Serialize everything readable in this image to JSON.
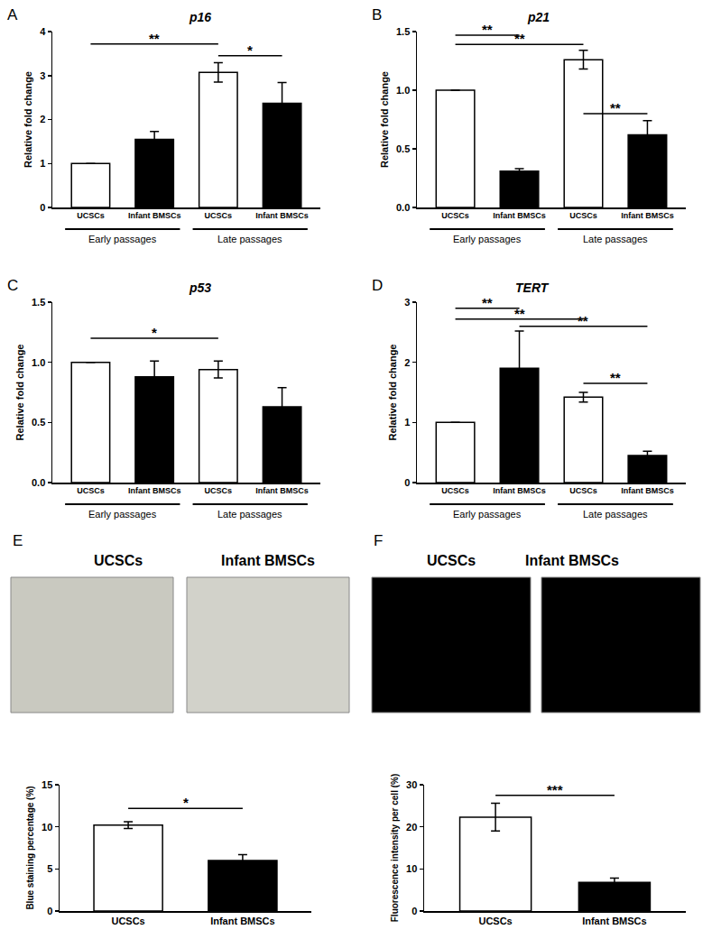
{
  "chart_data": [
    {
      "panel": "A",
      "type": "bar",
      "title": "p16",
      "y_label": "Relative fold change",
      "categories": [
        "UCSCs",
        "Infant BMSCs",
        "UCSCs",
        "Infant BMSCs"
      ],
      "groups": [
        {
          "label": "Early passages",
          "from": 0,
          "to": 1
        },
        {
          "label": "Late passages",
          "from": 2,
          "to": 3
        }
      ],
      "values": [
        1,
        1.55,
        3.07,
        2.37
      ],
      "errors": [
        0,
        0.18,
        0.22,
        0.47
      ],
      "colors": [
        "#ffffff",
        "#000000",
        "#ffffff",
        "#000000"
      ],
      "ylim": [
        0,
        4
      ],
      "yticks": [
        0,
        1,
        2,
        3,
        4
      ],
      "significance": [
        {
          "from": 0,
          "to": 2,
          "y": 3.72,
          "text": "**"
        },
        {
          "from": 2,
          "to": 3,
          "y": 3.45,
          "text": "*"
        }
      ]
    },
    {
      "panel": "B",
      "type": "bar",
      "title": "p21",
      "y_label": "Relative fold change",
      "categories": [
        "UCSCs",
        "Infant BMSCs",
        "UCSCs",
        "Infant BMSCs"
      ],
      "groups": [
        {
          "label": "Early passages",
          "from": 0,
          "to": 1
        },
        {
          "label": "Late passages",
          "from": 2,
          "to": 3
        }
      ],
      "values": [
        1,
        0.31,
        1.26,
        0.62
      ],
      "errors": [
        0,
        0.02,
        0.08,
        0.12
      ],
      "colors": [
        "#ffffff",
        "#000000",
        "#ffffff",
        "#000000"
      ],
      "ylim": [
        0,
        1.5
      ],
      "yticks": [
        {
          "value": 0,
          "label": "0.0"
        },
        0.5,
        {
          "value": 1,
          "label": "1.0"
        },
        1.5
      ],
      "significance": [
        {
          "from": 0,
          "to": 1,
          "y": 1.47,
          "text": "**"
        },
        {
          "from": 0,
          "to": 2,
          "y": 1.39,
          "text": "**"
        },
        {
          "from": 2,
          "to": 3,
          "y": 0.8,
          "text": "**"
        }
      ]
    },
    {
      "panel": "C",
      "type": "bar",
      "title": "p53",
      "y_label": "Relative fold change",
      "categories": [
        "UCSCs",
        "Infant BMSCs",
        "UCSCs",
        "Infant BMSCs"
      ],
      "groups": [
        {
          "label": "Early passages",
          "from": 0,
          "to": 1
        },
        {
          "label": "Late passages",
          "from": 2,
          "to": 3
        }
      ],
      "values": [
        1,
        0.88,
        0.94,
        0.63
      ],
      "errors": [
        0,
        0.13,
        0.07,
        0.16
      ],
      "colors": [
        "#ffffff",
        "#000000",
        "#ffffff",
        "#000000"
      ],
      "ylim": [
        0,
        1.5
      ],
      "yticks": [
        {
          "value": 0,
          "label": "0.0"
        },
        0.5,
        {
          "value": 1,
          "label": "1.0"
        },
        1.5
      ],
      "significance": [
        {
          "from": 0,
          "to": 2,
          "y": 1.2,
          "text": "*"
        }
      ]
    },
    {
      "panel": "D",
      "type": "bar",
      "title": "TERT",
      "y_label": "Relative fold change",
      "categories": [
        "UCSCs",
        "Infant BMSCs",
        "UCSCs",
        "Infant BMSCs"
      ],
      "groups": [
        {
          "label": "Early passages",
          "from": 0,
          "to": 1
        },
        {
          "label": "Late passages",
          "from": 2,
          "to": 3
        }
      ],
      "values": [
        1,
        1.9,
        1.42,
        0.45
      ],
      "errors": [
        0,
        0.62,
        0.08,
        0.07
      ],
      "colors": [
        "#ffffff",
        "#000000",
        "#ffffff",
        "#000000"
      ],
      "ylim": [
        0,
        3
      ],
      "yticks": [
        0,
        1,
        2,
        3
      ],
      "significance": [
        {
          "from": 0,
          "to": 1,
          "y": 2.9,
          "text": "**"
        },
        {
          "from": 0,
          "to": 2,
          "y": 2.72,
          "text": "**"
        },
        {
          "from": 1,
          "to": 3,
          "y": 2.6,
          "text": "**"
        },
        {
          "from": 2,
          "to": 3,
          "y": 1.65,
          "text": "**"
        }
      ]
    },
    {
      "panel": "E",
      "type": "bar",
      "y_label": "Blue staining percentage (%)",
      "image_labels": [
        "UCSCs",
        "Infant BMSCs"
      ],
      "categories": [
        "UCSCs",
        "Infant BMSCs"
      ],
      "values": [
        10.2,
        6.0
      ],
      "errors": [
        0.4,
        0.7
      ],
      "colors": [
        "#ffffff",
        "#000000"
      ],
      "ylim": [
        0,
        15
      ],
      "yticks": [
        0,
        5,
        10,
        15
      ],
      "significance": [
        {
          "from": 0,
          "to": 1,
          "y": 12.2,
          "text": "*"
        }
      ]
    },
    {
      "panel": "F",
      "type": "bar",
      "y_label": "Fluorescence intensity per cell (%)",
      "image_labels": [
        "UCSCs",
        "Infant BMSCs"
      ],
      "categories": [
        "UCSCs",
        "Infant BMSCs"
      ],
      "values": [
        22.3,
        6.8
      ],
      "errors": [
        3.3,
        1.0
      ],
      "colors": [
        "#ffffff",
        "#000000"
      ],
      "ylim": [
        0,
        30
      ],
      "yticks": [
        0,
        10,
        20,
        30
      ],
      "significance": [
        {
          "from": 0,
          "to": 1,
          "y": 27.5,
          "text": "***"
        }
      ]
    }
  ]
}
